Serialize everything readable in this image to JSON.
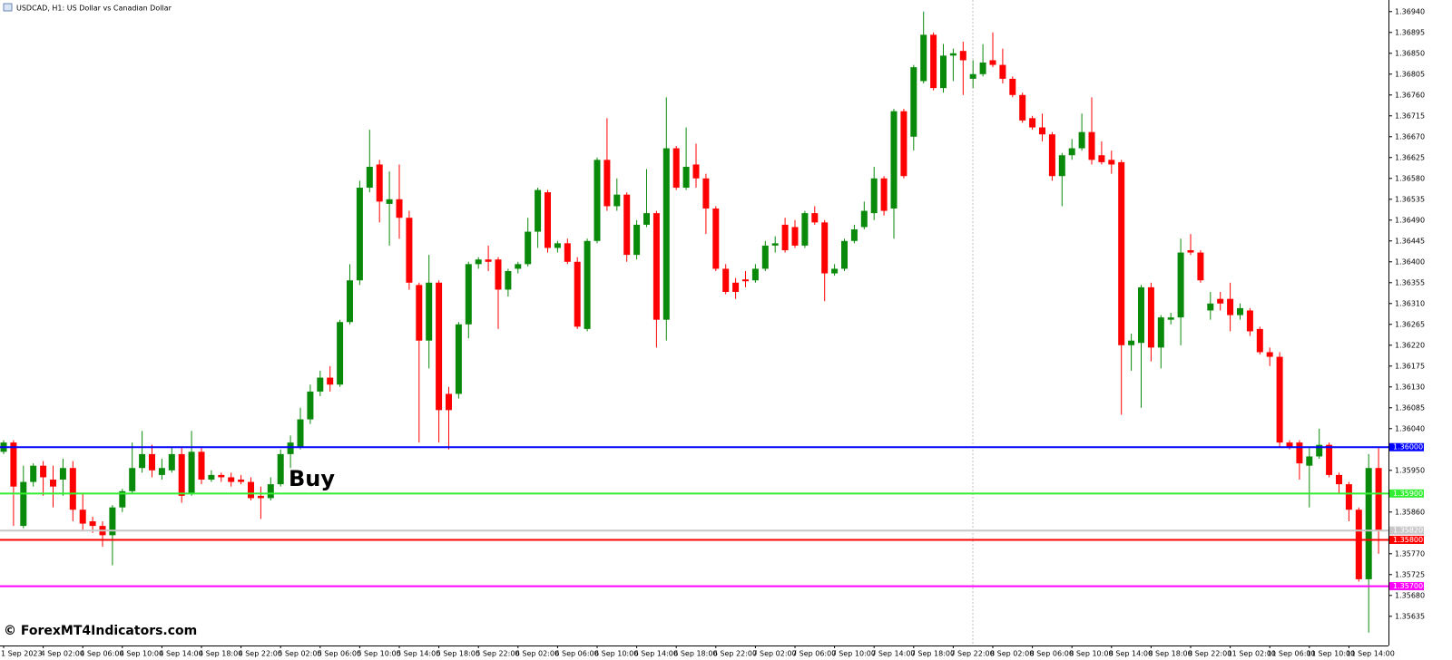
{
  "chart_data": {
    "type": "candlestick",
    "title": "USDCAD, H1:  US Dollar vs Canadian Dollar",
    "annotation": "Buy",
    "watermark": "© ForexMT4Indicators.com",
    "up_color": "#0a8a0a",
    "down_color": "#ff0000",
    "categories": [
      "1 Sep 2023",
      null,
      null,
      null,
      "4 Sep 02:00",
      null,
      null,
      null,
      "4 Sep 06:00",
      null,
      null,
      null,
      "4 Sep 10:00",
      null,
      null,
      null,
      "4 Sep 14:00",
      null,
      null,
      null,
      "4 Sep 18:00",
      null,
      null,
      null,
      "4 Sep 22:00",
      null,
      null,
      null,
      "5 Sep 02:00",
      null,
      null,
      null,
      "5 Sep 06:00",
      null,
      null,
      null,
      "5 Sep 10:00",
      null,
      null,
      null,
      "5 Sep 14:00",
      null,
      null,
      null,
      "5 Sep 18:00",
      null,
      null,
      null,
      "5 Sep 22:00",
      null,
      null,
      null,
      "6 Sep 02:00",
      null,
      null,
      null,
      "6 Sep 06:00",
      null,
      null,
      null,
      "6 Sep 10:00",
      null,
      null,
      null,
      "6 Sep 14:00",
      null,
      null,
      null,
      "6 Sep 18:00",
      null,
      null,
      null,
      "6 Sep 22:00",
      null,
      null,
      null,
      "7 Sep 02:00",
      null,
      null,
      null,
      "7 Sep 06:00",
      null,
      null,
      null,
      "7 Sep 10:00",
      null,
      null,
      null,
      "7 Sep 14:00",
      null,
      null,
      null,
      "7 Sep 18:00",
      null,
      null,
      null,
      "7 Sep 22:00",
      null,
      null,
      null,
      "8 Sep 02:00",
      null,
      null,
      null,
      "8 Sep 06:00",
      null,
      null,
      null,
      "8 Sep 10:00",
      null,
      null,
      null,
      "8 Sep 14:00",
      null,
      null,
      null,
      "8 Sep 18:00",
      null,
      null,
      null,
      "8 Sep 22:00",
      null,
      null,
      null,
      "11 Sep 02:00",
      null,
      null,
      null,
      "11 Sep 06:00",
      null,
      null,
      null,
      "11 Sep 10:00",
      null,
      null,
      null,
      "11 Sep 14:00",
      null,
      null,
      null
    ],
    "open": [
      1.3599,
      1.3601,
      1.3583,
      1.35925,
      1.3596,
      1.3593,
      1.3593,
      1.35955,
      1.35865,
      1.3584,
      1.3583,
      1.3581,
      1.3587,
      1.35905,
      1.35955,
      1.35985,
      1.3594,
      1.3595,
      1.35985,
      1.359,
      1.3599,
      1.3593,
      1.3594,
      1.35935,
      1.3593,
      1.35925,
      1.35895,
      1.3589,
      1.3592,
      1.35985,
      1.36,
      1.3606,
      1.3612,
      1.3615,
      1.36135,
      1.3627,
      1.3636,
      1.3656,
      1.3661,
      1.36525,
      1.36535,
      1.36495,
      1.3635,
      1.3623,
      1.36355,
      1.36115,
      1.36115,
      1.36265,
      1.36395,
      1.36405,
      1.36405,
      1.3634,
      1.36385,
      1.36395,
      1.36465,
      1.3655,
      1.3643,
      1.3644,
      1.364,
      1.36255,
      1.36445,
      1.3662,
      1.3652,
      1.36545,
      1.36415,
      1.3648,
      1.36505,
      1.36275,
      1.36645,
      1.3656,
      1.3661,
      1.3658,
      1.36515,
      1.36385,
      1.36355,
      1.36362,
      1.3636,
      1.36385,
      1.36435,
      1.3648,
      1.36475,
      1.36435,
      1.36505,
      1.36485,
      1.36375,
      1.36385,
      1.36445,
      1.36475,
      1.36505,
      1.3658,
      1.36515,
      1.36725,
      1.3667,
      1.3679,
      1.3689,
      1.36775,
      1.36845,
      1.36855,
      1.36795,
      1.36805,
      1.36835,
      1.36825,
      1.36795,
      1.3676,
      1.3671,
      1.3669,
      1.36675,
      1.36585,
      1.3663,
      1.36645,
      1.3668,
      1.3663,
      1.3662,
      1.36615,
      1.3622,
      1.36225,
      1.36345,
      1.36215,
      1.36275,
      1.3628,
      1.36425,
      1.3642,
      1.36295,
      1.3632,
      1.3632,
      1.36285,
      1.36295,
      1.36255,
      1.36205,
      1.36195,
      1.3601,
      1.3601,
      1.3596,
      1.3598,
      1.36005,
      1.3594,
      1.3592,
      1.35865,
      1.35715,
      1.35955
    ],
    "high": [
      1.36015,
      1.36015,
      1.3596,
      1.35965,
      1.3597,
      1.3596,
      1.35975,
      1.3597,
      1.359,
      1.3585,
      1.3584,
      1.35875,
      1.3591,
      1.3601,
      1.36035,
      1.36005,
      1.35975,
      1.36,
      1.36,
      1.36035,
      1.36,
      1.3595,
      1.35945,
      1.35945,
      1.3594,
      1.35935,
      1.35915,
      1.35935,
      1.35995,
      1.36025,
      1.36085,
      1.36135,
      1.36165,
      1.36175,
      1.36275,
      1.36395,
      1.36575,
      1.36685,
      1.3662,
      1.36595,
      1.3661,
      1.3651,
      1.36355,
      1.36415,
      1.3636,
      1.3613,
      1.3627,
      1.364,
      1.3641,
      1.36435,
      1.3641,
      1.36385,
      1.364,
      1.36495,
      1.3656,
      1.36555,
      1.36445,
      1.3645,
      1.3641,
      1.3645,
      1.36625,
      1.3671,
      1.3658,
      1.3655,
      1.3649,
      1.366,
      1.3651,
      1.36755,
      1.3665,
      1.3669,
      1.36655,
      1.3659,
      1.3652,
      1.36395,
      1.36365,
      1.3638,
      1.36395,
      1.36445,
      1.36455,
      1.36495,
      1.3649,
      1.3651,
      1.3652,
      1.3649,
      1.36395,
      1.3645,
      1.3648,
      1.3653,
      1.36605,
      1.36585,
      1.3673,
      1.3673,
      1.36825,
      1.3694,
      1.36895,
      1.3687,
      1.3686,
      1.36875,
      1.36835,
      1.3687,
      1.36895,
      1.3686,
      1.368,
      1.36765,
      1.36715,
      1.3672,
      1.3668,
      1.36635,
      1.36665,
      1.3672,
      1.36755,
      1.3666,
      1.3664,
      1.3662,
      1.36245,
      1.3635,
      1.36355,
      1.36285,
      1.3629,
      1.3645,
      1.3646,
      1.36425,
      1.36335,
      1.36335,
      1.36355,
      1.3631,
      1.363,
      1.3626,
      1.36215,
      1.36205,
      1.36015,
      1.36015,
      1.36,
      1.3604,
      1.3601,
      1.35945,
      1.35925,
      1.3587,
      1.35985,
      1.36
    ],
    "low": [
      1.35985,
      1.3583,
      1.35825,
      1.35915,
      1.35895,
      1.3587,
      1.35895,
      1.3584,
      1.3582,
      1.35815,
      1.35785,
      1.35745,
      1.3586,
      1.359,
      1.35945,
      1.35935,
      1.3593,
      1.35945,
      1.3588,
      1.35895,
      1.3592,
      1.35925,
      1.35925,
      1.35915,
      1.3592,
      1.35885,
      1.35845,
      1.35885,
      1.35915,
      1.35955,
      1.35995,
      1.3605,
      1.3611,
      1.3612,
      1.3613,
      1.36265,
      1.3635,
      1.3655,
      1.36485,
      1.36435,
      1.3645,
      1.3634,
      1.3601,
      1.3617,
      1.3601,
      1.35995,
      1.36105,
      1.36235,
      1.36385,
      1.3638,
      1.36255,
      1.36325,
      1.36375,
      1.3639,
      1.3643,
      1.3642,
      1.3642,
      1.36395,
      1.36255,
      1.3625,
      1.3644,
      1.3651,
      1.3651,
      1.364,
      1.36405,
      1.36475,
      1.36215,
      1.3623,
      1.36555,
      1.36555,
      1.3656,
      1.3646,
      1.3638,
      1.3633,
      1.3632,
      1.36345,
      1.36355,
      1.3638,
      1.3642,
      1.3642,
      1.3643,
      1.3643,
      1.3648,
      1.36315,
      1.3637,
      1.3638,
      1.3644,
      1.3647,
      1.3649,
      1.365,
      1.3645,
      1.3658,
      1.3664,
      1.36785,
      1.3677,
      1.36765,
      1.3679,
      1.3676,
      1.36775,
      1.368,
      1.3682,
      1.36785,
      1.36755,
      1.367,
      1.36685,
      1.3666,
      1.36575,
      1.3652,
      1.3662,
      1.3664,
      1.3661,
      1.3661,
      1.3659,
      1.3607,
      1.36165,
      1.36085,
      1.36185,
      1.3617,
      1.36265,
      1.3622,
      1.36415,
      1.36355,
      1.36275,
      1.36295,
      1.3625,
      1.36275,
      1.3624,
      1.362,
      1.36175,
      1.36,
      1.35995,
      1.3593,
      1.3587,
      1.35975,
      1.35935,
      1.359,
      1.3584,
      1.3571,
      1.356,
      1.3577
    ],
    "close": [
      1.3601,
      1.35915,
      1.35925,
      1.3596,
      1.35935,
      1.35915,
      1.35955,
      1.35865,
      1.35835,
      1.3583,
      1.3581,
      1.3587,
      1.35905,
      1.35955,
      1.35985,
      1.3595,
      1.35955,
      1.35985,
      1.35895,
      1.3599,
      1.3593,
      1.3594,
      1.35935,
      1.35925,
      1.35925,
      1.3589,
      1.3589,
      1.3592,
      1.35985,
      1.3601,
      1.3606,
      1.3612,
      1.3615,
      1.36135,
      1.3627,
      1.3636,
      1.3656,
      1.36605,
      1.3653,
      1.36535,
      1.36495,
      1.36355,
      1.3623,
      1.36355,
      1.3608,
      1.3608,
      1.36265,
      1.36395,
      1.36405,
      1.364,
      1.3634,
      1.3638,
      1.36395,
      1.36465,
      1.36555,
      1.3643,
      1.3644,
      1.364,
      1.3626,
      1.36445,
      1.3662,
      1.3652,
      1.36545,
      1.36415,
      1.3648,
      1.36505,
      1.36275,
      1.36645,
      1.3656,
      1.36605,
      1.3658,
      1.36515,
      1.36385,
      1.36335,
      1.36335,
      1.36358,
      1.36385,
      1.36435,
      1.3644,
      1.36425,
      1.36435,
      1.36505,
      1.36485,
      1.36375,
      1.36385,
      1.36445,
      1.3647,
      1.3651,
      1.3658,
      1.3651,
      1.36725,
      1.36585,
      1.3682,
      1.3689,
      1.36775,
      1.36845,
      1.3685,
      1.36835,
      1.36805,
      1.3683,
      1.36825,
      1.36795,
      1.3676,
      1.36705,
      1.3669,
      1.36675,
      1.36585,
      1.3663,
      1.36645,
      1.3668,
      1.3662,
      1.36615,
      1.3661,
      1.3622,
      1.3623,
      1.36345,
      1.36215,
      1.3628,
      1.3628,
      1.3642,
      1.3642,
      1.3636,
      1.3631,
      1.3631,
      1.36285,
      1.363,
      1.3625,
      1.36205,
      1.36195,
      1.3601,
      1.36,
      1.35965,
      1.3598,
      1.36005,
      1.3594,
      1.3592,
      1.35865,
      1.35715,
      1.35955,
      1.3582
    ],
    "lines": [
      {
        "value": 1.36,
        "label": "1.36000",
        "color": "#0000ff"
      },
      {
        "value": 1.359,
        "label": "1.35900",
        "color": "#33ee33"
      },
      {
        "value": 1.3582,
        "label": "1.35820",
        "color": "#c8c8c8"
      },
      {
        "value": 1.358,
        "label": "1.35800",
        "color": "#ff0000"
      },
      {
        "value": 1.357,
        "label": "1.35700",
        "color": "#ff00ff"
      }
    ],
    "ylim": [
      1.35572,
      1.36965
    ],
    "yticks": [
      {
        "value": 1.3694,
        "label": "1.36940"
      },
      {
        "value": 1.36895,
        "label": "1.36895"
      },
      {
        "value": 1.3685,
        "label": "1.36850"
      },
      {
        "value": 1.36805,
        "label": "1.36805"
      },
      {
        "value": 1.3676,
        "label": "1.36760"
      },
      {
        "value": 1.36715,
        "label": "1.36715"
      },
      {
        "value": 1.3667,
        "label": "1.36670"
      },
      {
        "value": 1.36625,
        "label": "1.36625"
      },
      {
        "value": 1.3658,
        "label": "1.36580"
      },
      {
        "value": 1.36535,
        "label": "1.36535"
      },
      {
        "value": 1.3649,
        "label": "1.36490"
      },
      {
        "value": 1.36445,
        "label": "1.36445"
      },
      {
        "value": 1.364,
        "label": "1.36400"
      },
      {
        "value": 1.36355,
        "label": "1.36355"
      },
      {
        "value": 1.3631,
        "label": "1.36310"
      },
      {
        "value": 1.36265,
        "label": "1.36265"
      },
      {
        "value": 1.3622,
        "label": "1.36220"
      },
      {
        "value": 1.36175,
        "label": "1.36175"
      },
      {
        "value": 1.3613,
        "label": "1.36130"
      },
      {
        "value": 1.36085,
        "label": "1.36085"
      },
      {
        "value": 1.3604,
        "label": "1.36040"
      },
      {
        "value": 1.3595,
        "label": "1.35950"
      },
      {
        "value": 1.3586,
        "label": "1.35860"
      },
      {
        "value": 1.3577,
        "label": "1.35770"
      },
      {
        "value": 1.35725,
        "label": "1.35725"
      },
      {
        "value": 1.3568,
        "label": "1.35680"
      },
      {
        "value": 1.35635,
        "label": "1.35635"
      }
    ]
  }
}
